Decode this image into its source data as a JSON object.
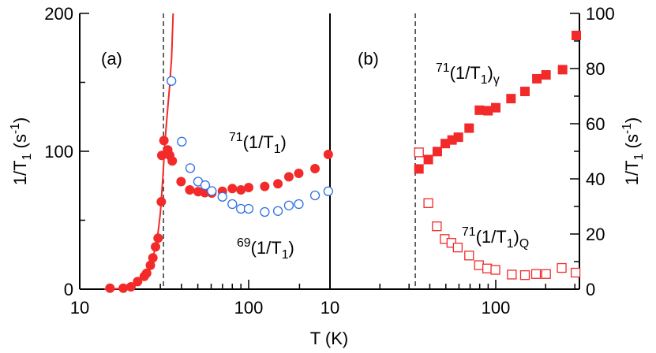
{
  "colors": {
    "red": "#f22a2a",
    "blue": "#2f6fe6",
    "axis": "#000000"
  },
  "chart_data": [
    {
      "panel": "(a)",
      "type": "scatter",
      "xscale": "log",
      "xlim": [
        10,
        305
      ],
      "ylim": [
        0,
        200
      ],
      "xticks": [
        10,
        100
      ],
      "xtick_labels": [
        "10",
        "100"
      ],
      "yticks": [
        0,
        100,
        200
      ],
      "ytick_labels": [
        "0",
        "100",
        "200"
      ],
      "ylabel": {
        "main": "1/T",
        "sub": "1",
        "rest": " (s",
        "sup": "-1",
        "end": ")"
      },
      "tc_dashed": 31.3,
      "series": [
        {
          "name": "71(1/T1)",
          "marker": "filled-circle",
          "color": "red",
          "x": [
            15.1,
            18.1,
            20.1,
            22.0,
            24.1,
            24.9,
            26.2,
            27.1,
            28.1,
            29.1,
            30.4,
            30.6,
            31.5,
            33.2,
            34.1,
            35.3,
            39.8,
            44.8,
            50.2,
            55.0,
            60.5,
            69.9,
            80.0,
            90,
            100,
            124.5,
            149,
            173,
            198,
            247,
            296
          ],
          "y": [
            0.7,
            0.7,
            1.7,
            5.5,
            9.3,
            11.6,
            17.3,
            22.7,
            30.7,
            37,
            63.4,
            97,
            107.8,
            101,
            97,
            93,
            78,
            72,
            70.7,
            70,
            69.7,
            71,
            73,
            72,
            73.7,
            74.5,
            76.4,
            81.5,
            84,
            87.4,
            97.7
          ]
        },
        {
          "name": "69(1/T1)",
          "marker": "open-circle",
          "color": "blue",
          "x": [
            34.9,
            40.2,
            45.1,
            50.2,
            55.3,
            60.5,
            69.9,
            80.0,
            90,
            100,
            124.5,
            149,
            173,
            198,
            247,
            296
          ],
          "y": [
            151,
            107,
            87.8,
            78,
            75.4,
            71.2,
            67,
            61.7,
            58.3,
            58.3,
            56,
            56.7,
            60.7,
            61.7,
            68,
            71
          ]
        }
      ],
      "fit_curve": {
        "color": "red",
        "x": [
          14,
          18,
          20,
          22,
          24,
          26,
          27,
          28,
          29,
          30,
          31,
          32,
          33,
          34,
          35,
          35.7
        ],
        "y": [
          0,
          0.5,
          1.5,
          4,
          9,
          16,
          22,
          30,
          40,
          55,
          80,
          108,
          128,
          146,
          168,
          200
        ]
      },
      "annotations": [
        {
          "id": "panel-a",
          "segments": [
            {
              "t": "(a)",
              "s": "n"
            }
          ]
        },
        {
          "id": "label-71",
          "segments": [
            {
              "t": "71",
              "s": "sup"
            },
            {
              "t": "(1/T",
              "s": "n"
            },
            {
              "t": "1",
              "s": "sub"
            },
            {
              "t": ")",
              "s": "n"
            }
          ]
        },
        {
          "id": "label-69",
          "segments": [
            {
              "t": "69",
              "s": "sup"
            },
            {
              "t": "(1/T",
              "s": "n"
            },
            {
              "t": "1",
              "s": "sub"
            },
            {
              "t": ")",
              "s": "n"
            }
          ]
        }
      ]
    },
    {
      "panel": "(b)",
      "type": "scatter",
      "xscale": "log",
      "xlim": [
        10,
        320
      ],
      "ylim": [
        0,
        100
      ],
      "xticks": [
        10,
        100
      ],
      "xtick_labels": [
        "10",
        "100"
      ],
      "yticks": [
        0,
        20,
        40,
        60,
        80,
        100
      ],
      "ytick_labels": [
        "0",
        "20",
        "40",
        "60",
        "80",
        "100"
      ],
      "ylabel": {
        "main": "1/T",
        "sub": "1",
        "rest": " (s",
        "sup": "-1",
        "end": ")"
      },
      "tc_dashed": 32.7,
      "series": [
        {
          "name": "71(1/T1)γ",
          "marker": "filled-square",
          "color": "red",
          "x": [
            34.4,
            39.2,
            44.4,
            49.6,
            54.5,
            59.5,
            69.1,
            79.7,
            89.9,
            100,
            123.6,
            150,
            177,
            201,
            253,
            306
          ],
          "y": [
            43.6,
            47,
            49.9,
            52.8,
            54.1,
            55.1,
            58.4,
            64.9,
            64.7,
            65.8,
            69.1,
            71.7,
            76.3,
            77.7,
            79.6,
            92
          ]
        },
        {
          "name": "71(1/T1)Q",
          "marker": "open-square",
          "color": "red",
          "x": [
            34.4,
            39.2,
            44.1,
            49.2,
            54.0,
            59.0,
            69.1,
            79.2,
            88.8,
            99.5,
            125,
            150,
            175,
            201,
            250,
            303
          ],
          "y": [
            49.6,
            31.2,
            22.8,
            18.2,
            16.8,
            15.1,
            12.2,
            8.7,
            7.5,
            7.0,
            5.3,
            5.1,
            5.5,
            5.5,
            7.7,
            6.0
          ]
        }
      ],
      "annotations": [
        {
          "id": "panel-b",
          "segments": [
            {
              "t": "(b)",
              "s": "n"
            }
          ]
        },
        {
          "id": "label-gamma",
          "segments": [
            {
              "t": "71",
              "s": "sup"
            },
            {
              "t": "(1/T",
              "s": "n"
            },
            {
              "t": "1",
              "s": "sub"
            },
            {
              "t": ")",
              "s": "n"
            },
            {
              "t": "γ",
              "s": "sub"
            }
          ]
        },
        {
          "id": "label-q",
          "segments": [
            {
              "t": "71",
              "s": "sup"
            },
            {
              "t": "(1/T",
              "s": "n"
            },
            {
              "t": "1",
              "s": "sub"
            },
            {
              "t": ")",
              "s": "n"
            },
            {
              "t": "Q",
              "s": "sub"
            }
          ]
        }
      ]
    }
  ],
  "xlabel": "T (K)"
}
